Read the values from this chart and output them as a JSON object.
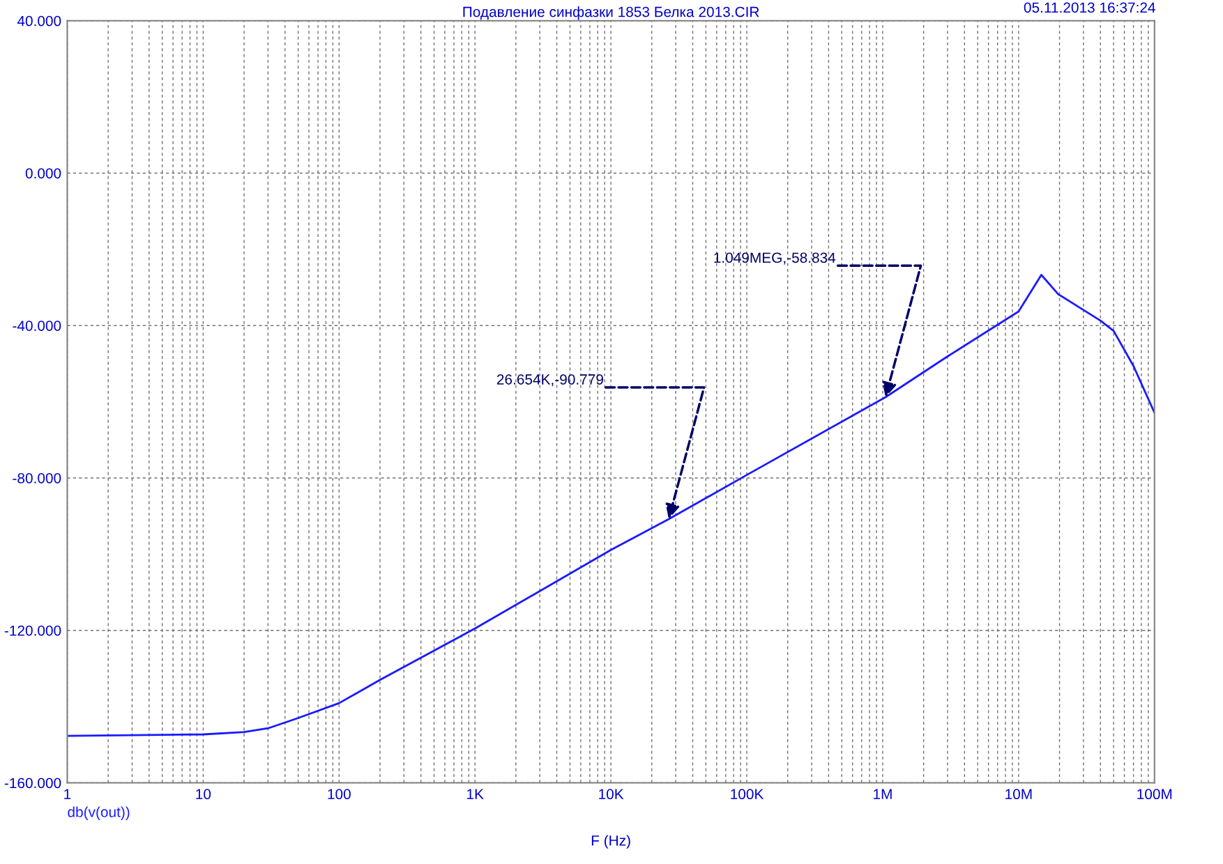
{
  "chart_data": {
    "type": "line",
    "title": "Подавление синфазки 1853 Белка 2013.CIR",
    "xlabel": "F (Hz)",
    "annotations": [
      "05.11.2013 16:37:24",
      {
        "text": "26.654K,-90.779",
        "x": 26654,
        "y": -90.779
      },
      {
        "text": "1.049MEG,-58.834",
        "x": 1049000,
        "y": -58.834
      }
    ],
    "log": "x",
    "grid": true,
    "marker": "none",
    "line_style": "solid",
    "xlim": [
      1,
      100000000
    ],
    "ylim": [
      -160,
      40
    ],
    "xticks": [
      1,
      10,
      100,
      {
        "value": 1000,
        "label": "1K"
      },
      {
        "value": 10000,
        "label": "10K"
      },
      {
        "value": 100000,
        "label": "100K"
      },
      {
        "value": 1000000,
        "label": "1M"
      },
      {
        "value": 10000000,
        "label": "10M"
      },
      {
        "value": 100000000,
        "label": "100M"
      }
    ],
    "yticks": [
      {
        "value": 40,
        "label": "40.000"
      },
      {
        "value": 0,
        "label": "0.000"
      },
      {
        "value": -40,
        "label": "-40.000"
      },
      {
        "value": -80,
        "label": "-80.000"
      },
      {
        "value": -120,
        "label": "-120.000"
      },
      {
        "value": -160,
        "label": "-160.000"
      }
    ],
    "series": [
      {
        "name": "db(v(out))",
        "color": "#1a1aff",
        "x": [
          1,
          10,
          20,
          30,
          50,
          100,
          200,
          1000,
          10000,
          26654,
          100000,
          1049000,
          3000000,
          10000000,
          14700000,
          19600000,
          30000000,
          40000000,
          50000000,
          70000000,
          100000000
        ],
        "values": [
          -147.7,
          -147.3,
          -146.7,
          -145.7,
          -143,
          -139.1,
          -133,
          -119.5,
          -98.9,
          -90.8,
          -79.2,
          -58.8,
          -48.1,
          -36.3,
          -26.7,
          -31.8,
          -35.9,
          -38.7,
          -41.4,
          -50.6,
          -62.9
        ]
      }
    ]
  }
}
